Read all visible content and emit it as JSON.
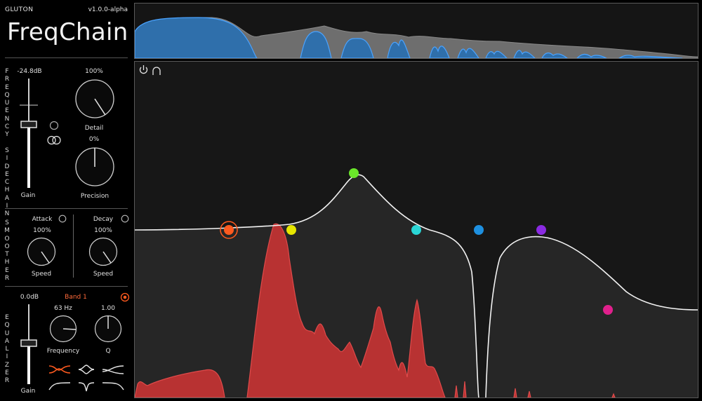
{
  "app": {
    "brand": "GLUTON",
    "version": "v1.0.0-alpha",
    "title": "FreqChain"
  },
  "sidechain": {
    "section_label": "F\nR\nE\nQ\nU\nE\nN\nC\nY\n \nS\nI\nD\nE\nC\nH\nA\nI\nN",
    "gain_value": "-24.8dB",
    "gain_label": "Gain",
    "gain_level": 0.78,
    "detail_value": "100%",
    "detail_label": "Detail",
    "detail_level": 1.0,
    "precision_value": "0%",
    "precision_label": "Precision",
    "precision_level": 0.5
  },
  "smoother": {
    "section_label": "S\nM\nO\nO\nT\nH\nE\nR",
    "attack_label": "Attack",
    "attack_value": "100%",
    "attack_speed_label": "Speed",
    "decay_label": "Decay",
    "decay_value": "100%",
    "decay_speed_label": "Speed"
  },
  "equalizer": {
    "section_label": "E\nQ\nU\nA\nL\nI\nZ\nE\nR",
    "gain_value": "0.0dB",
    "gain_label": "Gain",
    "band_label": "Band 1",
    "frequency_value": "63 Hz",
    "frequency_label": "Frequency",
    "q_value": "1.00",
    "q_label": "Q"
  },
  "colors": {
    "band1": "#ff5a1f",
    "band2": "#e6e600",
    "band3": "#6ae62a",
    "band4": "#2ad6d6",
    "band5": "#1e90e0",
    "band6": "#8a2be2",
    "band7": "#e0208c",
    "spectrum_blue": "#3a8fd6",
    "spectrum_red": "#c43535"
  },
  "eq_bands": [
    {
      "name": "band-1",
      "color_key": "band1",
      "selected": true
    },
    {
      "name": "band-2",
      "color_key": "band2",
      "selected": false
    },
    {
      "name": "band-3",
      "color_key": "band3",
      "selected": false
    },
    {
      "name": "band-4",
      "color_key": "band4",
      "selected": false
    },
    {
      "name": "band-5",
      "color_key": "band5",
      "selected": false
    },
    {
      "name": "band-6",
      "color_key": "band6",
      "selected": false
    },
    {
      "name": "band-7",
      "color_key": "band7",
      "selected": false
    }
  ],
  "icons": {
    "power": "power-icon",
    "headphones": "headphones-icon",
    "link": "link-icon",
    "solo": "solo-icon"
  }
}
